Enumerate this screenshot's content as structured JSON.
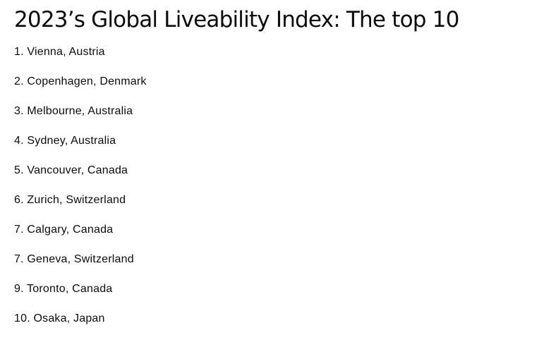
{
  "article": {
    "title": "2023’s Global Liveability Index: The top 10",
    "items": [
      "1. Vienna, Austria",
      "2. Copenhagen, Denmark",
      "3. Melbourne, Australia",
      "4. Sydney, Australia",
      "5. Vancouver, Canada",
      "6. Zurich, Switzerland",
      "7. Calgary, Canada",
      "7. Geneva, Switzerland",
      "9. Toronto, Canada",
      "10. Osaka, Japan"
    ]
  }
}
